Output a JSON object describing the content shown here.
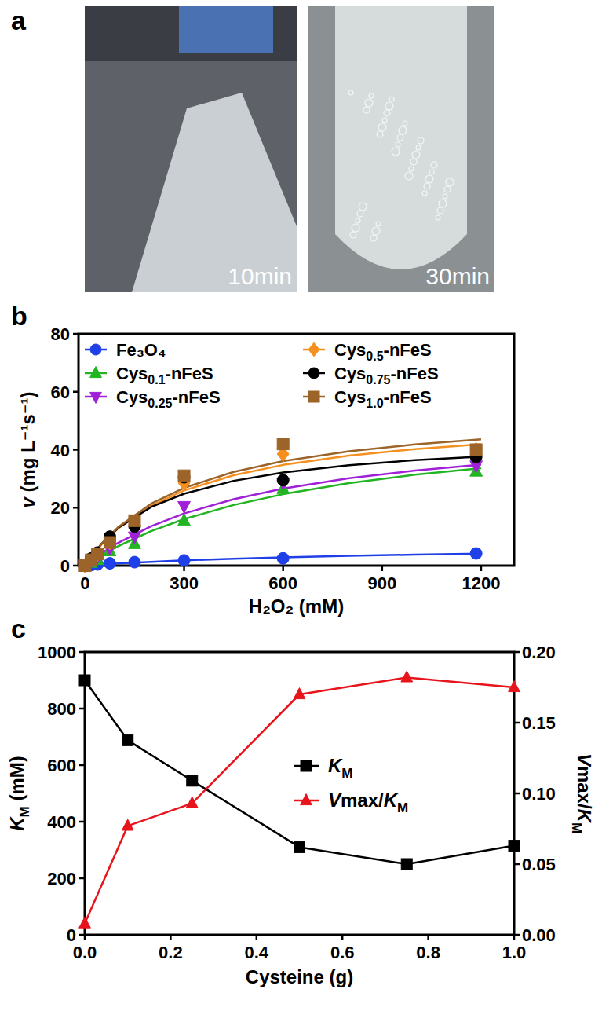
{
  "panel_a": {
    "panel": "a",
    "photos": [
      {
        "caption": "10min"
      },
      {
        "caption": "30min"
      }
    ]
  },
  "chart_data": [
    {
      "panel": "b",
      "type": "scatter",
      "x_label": "H₂O₂ (mM)",
      "y_label": "v (mg L⁻¹s⁻¹)",
      "x": [
        0,
        18.75,
        37.5,
        75,
        150,
        300,
        600,
        1185
      ],
      "fit_x": [
        0,
        50,
        100,
        200,
        300,
        450,
        600,
        800,
        1000,
        1200
      ],
      "xlim": [
        -20,
        1300
      ],
      "xticks": [
        0,
        300,
        600,
        900,
        1200
      ],
      "ylim": [
        0,
        80
      ],
      "yticks": [
        0,
        20,
        40,
        60,
        80
      ],
      "grid": false,
      "legend": "top-left",
      "series": [
        {
          "name": "Fe₃O₄",
          "color": "#1f3fe8",
          "marker": "circle",
          "values": [
            0,
            0.2,
            0.4,
            0.8,
            1.2,
            1.8,
            2.5,
            4.2
          ],
          "fit_values": [
            0,
            0.38,
            0.72,
            1.31,
            1.8,
            2.4,
            2.88,
            3.39,
            3.79,
            4.11
          ]
        },
        {
          "name": "Cys0.1-nFeS",
          "color": "#22b422",
          "marker": "triangle",
          "values": [
            0,
            1,
            2,
            5,
            7.5,
            15.5,
            26.5,
            32.5
          ],
          "fit_values": [
            0,
            3.58,
            6.71,
            11.91,
            16.06,
            20.92,
            24.65,
            28.46,
            31.36,
            33.65
          ]
        },
        {
          "name": "Cys0.25-nFeS",
          "color": "#a020d8",
          "marker": "triangle-down",
          "values": [
            0,
            1.5,
            3,
            6,
            10,
            20.5,
            28.5,
            34.5
          ],
          "fit_values": [
            0,
            4.26,
            7.86,
            13.61,
            18.0,
            22.93,
            26.57,
            30.16,
            32.82,
            34.87
          ]
        },
        {
          "name": "Cys0.5-nFeS",
          "color": "#f5901e",
          "marker": "diamond",
          "values": [
            0,
            2,
            4,
            8,
            15,
            28.5,
            38.5,
            40
          ],
          "fit_values": [
            0,
            7.32,
            12.85,
            20.67,
            25.92,
            31.2,
            34.75,
            37.98,
            40.23,
            41.88
          ]
        },
        {
          "name": "Cys0.75-nFeS",
          "color": "#000000",
          "marker": "circle",
          "values": [
            0,
            2.5,
            4.5,
            10,
            13.5,
            30.5,
            29.5,
            37.5
          ],
          "fit_values": [
            0,
            7.58,
            13.0,
            20.22,
            24.82,
            29.25,
            32.12,
            34.67,
            36.4,
            37.66
          ]
        },
        {
          "name": "Cys1.0-nFeS",
          "color": "#9c6428",
          "marker": "square",
          "values": [
            0,
            2,
            4,
            8,
            15.5,
            31,
            42,
            40
          ],
          "fit_values": [
            0,
            7.53,
            13.25,
            21.36,
            26.83,
            32.35,
            36.07,
            39.46,
            41.83,
            43.56
          ]
        }
      ]
    },
    {
      "panel": "c",
      "type": "line",
      "x_label": "Cysteine (g)",
      "y_label": "KM (mM)",
      "y2_label": "Vmax/KM",
      "x": [
        0,
        0.1,
        0.25,
        0.5,
        0.75,
        1.0
      ],
      "xlim": [
        0,
        1
      ],
      "xticks": [
        {
          "value": 0,
          "label": "0.0"
        },
        {
          "value": 0.2,
          "label": "0.2"
        },
        {
          "value": 0.4,
          "label": "0.4"
        },
        {
          "value": 0.6,
          "label": "0.6"
        },
        {
          "value": 0.8,
          "label": "0.8"
        },
        {
          "value": 1,
          "label": "1.0"
        }
      ],
      "ylim": [
        0,
        1000
      ],
      "yticks": [
        0,
        200,
        400,
        600,
        800,
        1000
      ],
      "y2lim": [
        0,
        0.2
      ],
      "y2ticks": [
        {
          "value": 0,
          "label": "0.00"
        },
        {
          "value": 0.05,
          "label": "0.05"
        },
        {
          "value": 0.1,
          "label": "0.10"
        },
        {
          "value": 0.15,
          "label": "0.15"
        },
        {
          "value": 0.2,
          "label": "0.20"
        }
      ],
      "grid": false,
      "legend": "center",
      "series": [
        {
          "name": "KM",
          "color": "#000000",
          "marker": "square",
          "values": [
            900,
            688,
            545,
            310,
            250,
            315
          ]
        },
        {
          "name": "Vmax/KM",
          "color": "#e8141c",
          "marker": "triangle",
          "axis": "y2",
          "values": [
            0.008,
            0.077,
            0.093,
            0.17,
            0.182,
            0.175
          ]
        }
      ]
    }
  ]
}
